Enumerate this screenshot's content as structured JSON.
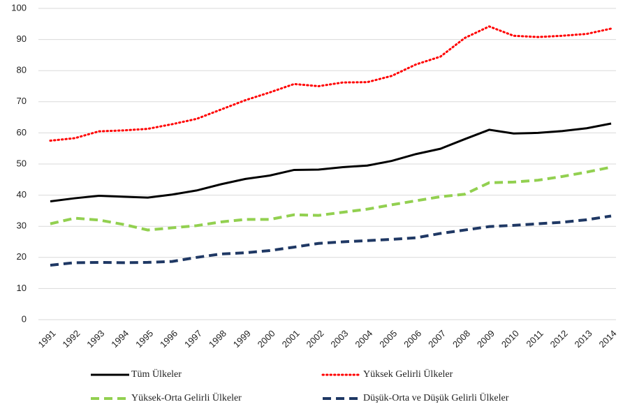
{
  "chart_data": {
    "type": "line",
    "categories": [
      "1991",
      "1992",
      "1993",
      "1994",
      "1995",
      "1996",
      "1997",
      "1998",
      "1999",
      "2000",
      "2001",
      "2002",
      "2003",
      "2004",
      "2005",
      "2006",
      "2007",
      "2008",
      "2009",
      "2010",
      "2011",
      "2012",
      "2013",
      "2014"
    ],
    "series": [
      {
        "name": "Tüm Ülkeler",
        "color": "#000000",
        "style": "solid",
        "values": [
          38,
          39,
          39.8,
          39.5,
          39.2,
          40.2,
          41.5,
          43.5,
          45.2,
          46.3,
          48.1,
          48.2,
          49,
          49.5,
          51,
          53.2,
          54.9,
          58,
          61,
          59.8,
          60,
          60.6,
          61.5,
          63
        ]
      },
      {
        "name": "Yüksek Gelirli Ülkeler",
        "color": "#ff0000",
        "style": "dotted",
        "values": [
          57.5,
          58.3,
          60.5,
          60.8,
          61.3,
          62.8,
          64.5,
          67.5,
          70.5,
          73,
          75.7,
          75,
          76.2,
          76.3,
          78.3,
          82,
          84.5,
          90.5,
          94.2,
          91.2,
          90.8,
          91.2,
          91.8,
          93.5
        ]
      },
      {
        "name": "Yüksek-Orta Gelirli Ülkeler",
        "color": "#92d050",
        "style": "dashed",
        "values": [
          30.8,
          32.6,
          32,
          30.6,
          28.8,
          29.5,
          30.2,
          31.4,
          32.2,
          32.2,
          33.7,
          33.5,
          34.5,
          35.5,
          36.9,
          38.2,
          39.5,
          40.3,
          44,
          44.2,
          44.8,
          46,
          47.4,
          49
        ]
      },
      {
        "name": "Düşük-Orta ve Düşük Gelirli Ülkeler",
        "color": "#1f3864",
        "style": "dashed",
        "values": [
          17.5,
          18.3,
          18.4,
          18.3,
          18.4,
          18.7,
          20,
          21.1,
          21.5,
          22.2,
          23.3,
          24.5,
          25,
          25.4,
          25.8,
          26.3,
          27.7,
          28.8,
          29.9,
          30.3,
          30.8,
          31.3,
          32.1,
          33.3
        ]
      }
    ],
    "ylim": [
      0,
      100
    ],
    "yticks": [
      0,
      10,
      20,
      30,
      40,
      50,
      60,
      70,
      80,
      90,
      100
    ],
    "grid": true,
    "legend": "bottom"
  }
}
